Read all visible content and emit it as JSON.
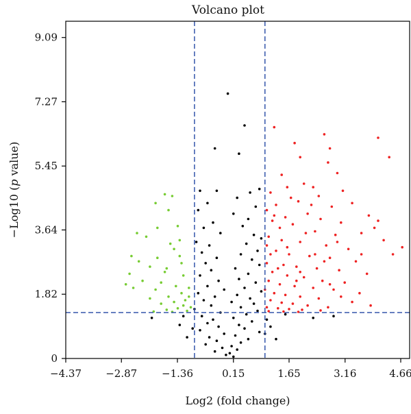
{
  "chart_data": {
    "type": "scatter",
    "title": "Volcano plot",
    "xlabel": "Log2 (fold change)",
    "ylabel_prefix": "−Log10 (",
    "ylabel_italic": "p",
    "ylabel_suffix": " value)",
    "xlim": [
      -4.37,
      4.9
    ],
    "ylim": [
      0,
      9.55
    ],
    "xticks": [
      -4.37,
      -2.87,
      -1.36,
      0.15,
      1.65,
      3.16,
      4.66
    ],
    "xtick_labels": [
      "−4.37",
      "−2.87",
      "−1.36",
      "0.15",
      "1.65",
      "3.16",
      "4.66"
    ],
    "yticks": [
      0,
      1.82,
      3.64,
      5.45,
      7.27,
      9.09
    ],
    "ytick_labels": [
      "0",
      "1.82",
      "3.64",
      "5.45",
      "7.27",
      "9.09"
    ],
    "grid": false,
    "thresholds": {
      "fold_change_low": -0.9,
      "fold_change_high": 1.0,
      "p_value_log10": 1.3
    },
    "colors": {
      "up": "#ee2222",
      "down": "#77cc33",
      "not_significant": "#000000",
      "threshold_line": "#3355aa"
    },
    "series": [
      {
        "name": "",
        "color": "#77cc33",
        "points": [
          [
            -1.7,
            4.65
          ],
          [
            -1.5,
            4.6
          ],
          [
            -1.95,
            4.4
          ],
          [
            -1.6,
            4.2
          ],
          [
            -2.45,
            3.55
          ],
          [
            -2.2,
            3.45
          ],
          [
            -1.3,
            3.35
          ],
          [
            -1.45,
            3.1
          ],
          [
            -2.6,
            2.9
          ],
          [
            -1.9,
            2.85
          ],
          [
            -2.4,
            2.75
          ],
          [
            -1.25,
            2.7
          ],
          [
            -2.1,
            2.6
          ],
          [
            -1.65,
            2.55
          ],
          [
            -2.65,
            2.4
          ],
          [
            -1.2,
            2.35
          ],
          [
            -2.3,
            2.2
          ],
          [
            -1.8,
            2.15
          ],
          [
            -1.4,
            2.05
          ],
          [
            -2.55,
            2.0
          ],
          [
            -1.05,
            2.0
          ],
          [
            -1.95,
            1.95
          ],
          [
            -1.25,
            1.85
          ],
          [
            -1.6,
            1.75
          ],
          [
            -2.1,
            1.7
          ],
          [
            -1.15,
            1.65
          ],
          [
            -1.45,
            1.6
          ],
          [
            -1.8,
            1.55
          ],
          [
            -1.2,
            1.5
          ],
          [
            -1.0,
            1.45
          ],
          [
            -1.35,
            1.42
          ],
          [
            -1.65,
            1.38
          ],
          [
            -1.1,
            1.35
          ],
          [
            -2.0,
            1.33
          ],
          [
            -1.5,
            1.32
          ],
          [
            -1.05,
            1.75
          ],
          [
            -1.7,
            2.45
          ],
          [
            -1.3,
            2.9
          ],
          [
            -1.55,
            3.25
          ],
          [
            -1.9,
            3.7
          ],
          [
            -2.75,
            2.1
          ],
          [
            -1.35,
            3.75
          ]
        ]
      },
      {
        "name": "",
        "color": "#ee2222",
        "points": [
          [
            1.25,
            6.55
          ],
          [
            2.6,
            6.35
          ],
          [
            4.05,
            6.25
          ],
          [
            2.75,
            5.95
          ],
          [
            1.8,
            6.1
          ],
          [
            4.35,
            5.7
          ],
          [
            1.95,
            5.7
          ],
          [
            2.7,
            5.55
          ],
          [
            2.95,
            5.25
          ],
          [
            1.45,
            5.2
          ],
          [
            2.05,
            4.95
          ],
          [
            2.3,
            4.85
          ],
          [
            3.1,
            4.75
          ],
          [
            1.6,
            4.85
          ],
          [
            1.15,
            4.7
          ],
          [
            2.45,
            4.6
          ],
          [
            1.9,
            4.45
          ],
          [
            3.35,
            4.4
          ],
          [
            1.3,
            4.35
          ],
          [
            2.8,
            4.3
          ],
          [
            1.05,
            4.2
          ],
          [
            3.8,
            4.05
          ],
          [
            2.15,
            4.1
          ],
          [
            1.55,
            4.0
          ],
          [
            2.5,
            3.95
          ],
          [
            3.05,
            3.85
          ],
          [
            1.2,
            3.9
          ],
          [
            1.75,
            3.8
          ],
          [
            4.7,
            3.15
          ],
          [
            4.2,
            3.35
          ],
          [
            3.6,
            3.55
          ],
          [
            3.95,
            3.7
          ],
          [
            2.35,
            3.6
          ],
          [
            2.9,
            3.5
          ],
          [
            1.1,
            3.45
          ],
          [
            1.45,
            3.35
          ],
          [
            1.95,
            3.3
          ],
          [
            2.65,
            3.2
          ],
          [
            3.25,
            3.1
          ],
          [
            4.45,
            2.95
          ],
          [
            1.3,
            3.05
          ],
          [
            1.65,
            2.95
          ],
          [
            2.2,
            2.9
          ],
          [
            2.75,
            2.85
          ],
          [
            3.45,
            2.75
          ],
          [
            1.05,
            2.7
          ],
          [
            1.5,
            2.65
          ],
          [
            1.85,
            2.6
          ],
          [
            2.4,
            2.55
          ],
          [
            3.0,
            2.5
          ],
          [
            3.75,
            2.4
          ],
          [
            1.2,
            2.45
          ],
          [
            1.6,
            2.35
          ],
          [
            2.05,
            2.3
          ],
          [
            2.55,
            2.2
          ],
          [
            3.15,
            2.15
          ],
          [
            1.1,
            2.2
          ],
          [
            1.4,
            2.1
          ],
          [
            1.8,
            2.05
          ],
          [
            2.3,
            2.0
          ],
          [
            2.85,
            1.95
          ],
          [
            3.55,
            1.85
          ],
          [
            1.0,
            1.95
          ],
          [
            1.25,
            1.85
          ],
          [
            1.55,
            1.8
          ],
          [
            1.95,
            1.75
          ],
          [
            2.45,
            1.7
          ],
          [
            3.35,
            1.6
          ],
          [
            1.15,
            1.65
          ],
          [
            1.45,
            1.58
          ],
          [
            1.75,
            1.55
          ],
          [
            2.15,
            1.5
          ],
          [
            2.7,
            1.45
          ],
          [
            1.05,
            1.45
          ],
          [
            1.35,
            1.42
          ],
          [
            1.65,
            1.4
          ],
          [
            2.0,
            1.38
          ],
          [
            2.5,
            1.36
          ],
          [
            1.1,
            1.34
          ],
          [
            1.5,
            1.33
          ],
          [
            1.9,
            1.32
          ],
          [
            3.85,
            1.5
          ],
          [
            2.95,
            3.3
          ],
          [
            2.25,
            4.35
          ],
          [
            1.7,
            4.55
          ],
          [
            2.6,
            2.75
          ],
          [
            1.35,
            2.55
          ],
          [
            3.6,
            2.95
          ],
          [
            1.25,
            4.05
          ],
          [
            2.1,
            3.55
          ],
          [
            4.05,
            3.9
          ],
          [
            1.6,
            3.15
          ],
          [
            2.35,
            2.95
          ],
          [
            1.85,
            2.2
          ],
          [
            1.15,
            2.95
          ],
          [
            3.05,
            1.75
          ],
          [
            2.75,
            2.1
          ],
          [
            1.4,
            3.7
          ],
          [
            1.95,
            2.45
          ],
          [
            1.05,
            3.2
          ]
        ]
      },
      {
        "name": "",
        "color": "#000000",
        "points": [
          [
            0.0,
            7.5
          ],
          [
            0.45,
            6.6
          ],
          [
            -0.35,
            5.95
          ],
          [
            0.3,
            5.8
          ],
          [
            -0.75,
            4.75
          ],
          [
            0.85,
            4.8
          ],
          [
            -0.3,
            4.75
          ],
          [
            0.6,
            4.7
          ],
          [
            0.25,
            4.55
          ],
          [
            -0.55,
            4.4
          ],
          [
            0.75,
            4.3
          ],
          [
            -0.8,
            4.2
          ],
          [
            0.15,
            4.1
          ],
          [
            0.55,
            3.95
          ],
          [
            -0.4,
            3.85
          ],
          [
            -0.65,
            3.7
          ],
          [
            0.4,
            3.75
          ],
          [
            0.7,
            3.5
          ],
          [
            -0.2,
            3.55
          ],
          [
            0.9,
            3.4
          ],
          [
            -0.85,
            3.3
          ],
          [
            -0.5,
            3.2
          ],
          [
            0.5,
            3.25
          ],
          [
            0.8,
            3.05
          ],
          [
            -0.7,
            3.0
          ],
          [
            0.35,
            2.95
          ],
          [
            -0.3,
            2.85
          ],
          [
            0.65,
            2.8
          ],
          [
            -0.6,
            2.7
          ],
          [
            0.85,
            2.65
          ],
          [
            0.2,
            2.55
          ],
          [
            -0.45,
            2.5
          ],
          [
            0.55,
            2.4
          ],
          [
            -0.75,
            2.35
          ],
          [
            0.3,
            2.25
          ],
          [
            -0.25,
            2.2
          ],
          [
            0.75,
            2.15
          ],
          [
            -0.55,
            2.05
          ],
          [
            0.45,
            2.0
          ],
          [
            -0.1,
            1.95
          ],
          [
            0.9,
            1.9
          ],
          [
            -0.8,
            1.85
          ],
          [
            0.25,
            1.8
          ],
          [
            -0.35,
            1.75
          ],
          [
            0.6,
            1.7
          ],
          [
            -0.65,
            1.65
          ],
          [
            0.1,
            1.6
          ],
          [
            0.7,
            1.55
          ],
          [
            -0.45,
            1.5
          ],
          [
            0.35,
            1.45
          ],
          [
            -0.9,
            1.4
          ],
          [
            0.8,
            1.35
          ],
          [
            -0.2,
            1.3
          ],
          [
            0.5,
            1.25
          ],
          [
            -0.7,
            1.2
          ],
          [
            0.15,
            1.15
          ],
          [
            -0.4,
            1.1
          ],
          [
            0.65,
            1.05
          ],
          [
            -0.55,
            1.0
          ],
          [
            0.3,
            0.95
          ],
          [
            -0.25,
            0.9
          ],
          [
            0.45,
            0.85
          ],
          [
            -0.75,
            0.8
          ],
          [
            0.85,
            0.75
          ],
          [
            -0.1,
            0.7
          ],
          [
            0.2,
            0.65
          ],
          [
            -0.5,
            0.6
          ],
          [
            0.55,
            0.55
          ],
          [
            -0.3,
            0.5
          ],
          [
            0.35,
            0.45
          ],
          [
            -0.6,
            0.4
          ],
          [
            0.1,
            0.35
          ],
          [
            -0.15,
            0.3
          ],
          [
            0.25,
            0.25
          ],
          [
            -0.35,
            0.2
          ],
          [
            0.05,
            0.15
          ],
          [
            -0.05,
            0.1
          ],
          [
            0.15,
            0.05
          ],
          [
            -2.05,
            1.15
          ],
          [
            -1.3,
            0.95
          ],
          [
            -1.1,
            0.6
          ],
          [
            -1.2,
            1.2
          ],
          [
            1.55,
            1.25
          ],
          [
            2.3,
            1.15
          ],
          [
            1.15,
            0.9
          ],
          [
            1.3,
            0.55
          ],
          [
            1.05,
            1.1
          ],
          [
            2.85,
            1.2
          ],
          [
            -0.95,
            0.85
          ],
          [
            1.0,
            0.7
          ]
        ]
      }
    ]
  }
}
